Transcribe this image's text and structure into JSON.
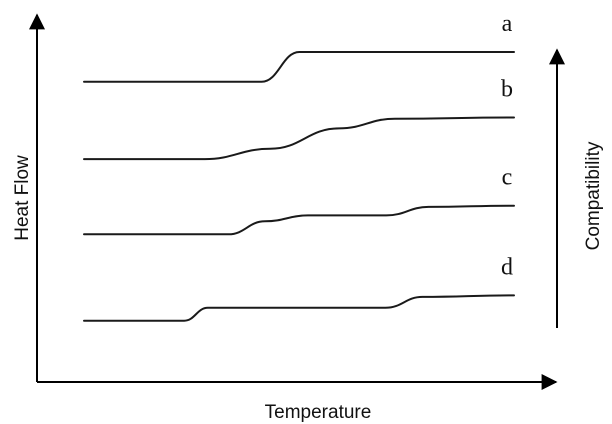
{
  "chart_data": {
    "type": "line",
    "xlabel": "Temperature",
    "ylabel": "Heat Flow",
    "x_ticks": [],
    "y_ticks": [],
    "grid": false,
    "legend": "none",
    "side_arrow_label": "Compatibility",
    "series": [
      {
        "name": "a",
        "x": [
          0,
          0.413,
          0.501,
          1.0
        ],
        "y": [
          0.899,
          0.899,
          1.0,
          1.0
        ]
      },
      {
        "name": "b",
        "x": [
          0,
          0.281,
          0.433,
          0.593,
          0.723,
          1.0
        ],
        "y": [
          0.637,
          0.637,
          0.672,
          0.741,
          0.774,
          0.778
        ]
      },
      {
        "name": "c",
        "x": [
          0,
          0.336,
          0.421,
          0.521,
          0.703,
          0.801,
          1.0
        ],
        "y": [
          0.382,
          0.382,
          0.426,
          0.446,
          0.446,
          0.475,
          0.479
        ]
      },
      {
        "name": "d",
        "x": [
          0,
          0.233,
          0.288,
          0.701,
          0.787,
          1.0
        ],
        "y": [
          0.089,
          0.089,
          0.133,
          0.133,
          0.17,
          0.175
        ]
      }
    ]
  }
}
